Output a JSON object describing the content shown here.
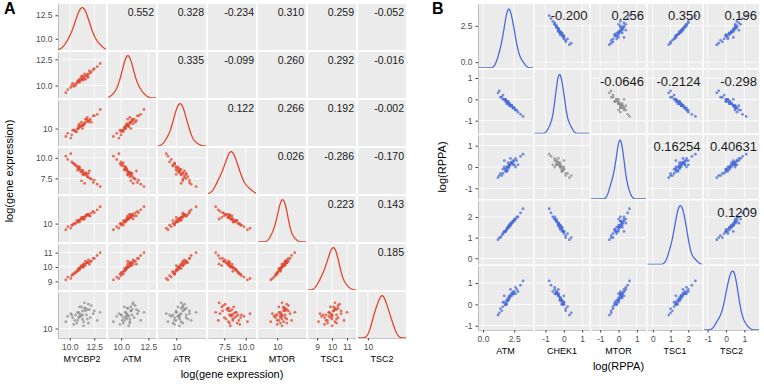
{
  "chart_data": [
    {
      "type": "pairs",
      "panel_label": "A",
      "x_label": "log(gene expression)",
      "y_label": "log(gene expression)",
      "color": "#e0462e",
      "variables": [
        {
          "name": "MYCBP2",
          "xlim": [
            8.8,
            13.7
          ],
          "xticks": [
            {
              "value": 10,
              "label": "10.0"
            },
            12.5
          ],
          "values": [
            11.2,
            10.5,
            11.8,
            12.1,
            10.9,
            11.4,
            9.8,
            11.0,
            12.4,
            10.7,
            11.6,
            11.3,
            10.2,
            11.9,
            12.8,
            10.8,
            11.1,
            11.5,
            10.4,
            11.7,
            12.2,
            10.9,
            11.3,
            9.6,
            11.0,
            11.8,
            12.0,
            10.6,
            11.4,
            11.2,
            13.1,
            10.3,
            11.6,
            11.0,
            12.5,
            10.8,
            11.5,
            11.9,
            10.1,
            11.3
          ]
        },
        {
          "name": "ATM",
          "xlim": [
            8.8,
            13.2
          ],
          "xticks": [
            {
              "value": 10,
              "label": "10.0"
            },
            12.5
          ],
          "values": [
            10.6,
            10.1,
            11.0,
            11.2,
            10.4,
            10.8,
            9.6,
            10.3,
            11.5,
            10.2,
            10.9,
            10.5,
            10.0,
            11.1,
            11.8,
            10.4,
            10.7,
            10.6,
            9.9,
            11.0,
            11.3,
            10.5,
            10.9,
            9.3,
            10.5,
            10.8,
            11.4,
            10.0,
            10.7,
            10.9,
            12.1,
            10.2,
            10.6,
            10.4,
            11.6,
            10.3,
            11.1,
            10.8,
            9.8,
            10.6
          ]
        },
        {
          "name": "ATR",
          "xlim": [
            8.9,
            11.8
          ],
          "xticks": [
            10
          ],
          "values": [
            10.2,
            9.9,
            10.5,
            10.6,
            10.0,
            10.3,
            9.7,
            10.1,
            10.8,
            9.8,
            10.4,
            10.2,
            9.6,
            10.5,
            10.9,
            10.0,
            10.1,
            10.3,
            9.9,
            10.6,
            10.4,
            10.2,
            10.0,
            9.5,
            10.3,
            10.7,
            10.5,
            9.8,
            10.2,
            10.4,
            11.2,
            9.9,
            10.6,
            10.1,
            10.8,
            10.0,
            10.3,
            10.4,
            9.4,
            10.2
          ]
        },
        {
          "name": "CHEK1",
          "xlim": [
            5.6,
            11.2
          ],
          "xticks": [
            7.5,
            {
              "value": 10,
              "label": "10.0"
            }
          ],
          "values": [
            8.4,
            9.2,
            7.8,
            7.5,
            8.9,
            8.0,
            9.8,
            8.6,
            7.0,
            9.0,
            8.2,
            8.5,
            9.5,
            7.6,
            6.8,
            8.8,
            8.3,
            7.9,
            9.3,
            8.1,
            7.4,
            8.7,
            8.0,
            10.2,
            8.6,
            7.7,
            8.4,
            9.1,
            8.2,
            7.2,
            6.5,
            9.4,
            8.0,
            8.9,
            7.3,
            8.5,
            6.9,
            8.1,
            10.5,
            8.3
          ]
        },
        {
          "name": "MTOR",
          "xlim": [
            8.8,
            11.8
          ],
          "xticks": [
            10
          ],
          "values": [
            10.3,
            10.0,
            10.6,
            10.5,
            10.2,
            10.4,
            9.8,
            10.1,
            10.8,
            10.2,
            10.5,
            10.3,
            9.9,
            10.6,
            10.9,
            10.1,
            10.3,
            10.4,
            10.0,
            10.5,
            10.7,
            10.2,
            10.4,
            9.6,
            10.2,
            10.6,
            10.5,
            10.0,
            10.3,
            10.4,
            11.1,
            9.9,
            10.5,
            10.2,
            10.7,
            10.1,
            10.3,
            10.6,
            9.7,
            10.3
          ]
        },
        {
          "name": "TSC1",
          "xlim": [
            8.4,
            11.6
          ],
          "xticks": [
            9,
            10,
            11
          ],
          "values": [
            10.0,
            9.6,
            10.3,
            10.4,
            9.8,
            10.2,
            9.3,
            9.9,
            10.6,
            9.7,
            10.1,
            10.0,
            9.4,
            10.5,
            10.8,
            9.8,
            10.0,
            10.2,
            9.5,
            10.3,
            10.4,
            9.9,
            10.1,
            9.1,
            9.9,
            10.3,
            10.2,
            9.6,
            10.0,
            10.1,
            11.0,
            9.5,
            10.4,
            9.8,
            10.6,
            9.7,
            10.2,
            10.3,
            9.2,
            10.0
          ]
        },
        {
          "name": "TSC2",
          "xlim": [
            9.3,
            12.7
          ],
          "xticks": [
            10
          ],
          "values": [
            11.0,
            10.6,
            11.4,
            10.8,
            11.2,
            10.5,
            10.9,
            11.6,
            11.1,
            10.4,
            11.3,
            10.7,
            11.0,
            11.8,
            10.6,
            11.2,
            10.9,
            11.5,
            10.3,
            11.0,
            11.7,
            10.8,
            11.3,
            10.5,
            11.1,
            10.7,
            11.4,
            11.0,
            10.2,
            11.6,
            11.2,
            10.8,
            11.5,
            10.9,
            11.3,
            10.6,
            11.9,
            10.4,
            11.1,
            11.0
          ]
        }
      ],
      "correlations": [
        {
          "x": "MYCBP2",
          "y": "ATM",
          "value": 0.552
        },
        {
          "x": "MYCBP2",
          "y": "ATR",
          "value": 0.328
        },
        {
          "x": "MYCBP2",
          "y": "CHEK1",
          "value": -0.234
        },
        {
          "x": "MYCBP2",
          "y": "MTOR",
          "value": 0.31,
          "label": "0.310"
        },
        {
          "x": "MYCBP2",
          "y": "TSC1",
          "value": 0.259
        },
        {
          "x": "MYCBP2",
          "y": "TSC2",
          "value": -0.052,
          "color": "#8f8f8f"
        },
        {
          "x": "ATM",
          "y": "ATR",
          "value": 0.335
        },
        {
          "x": "ATM",
          "y": "CHEK1",
          "value": -0.099
        },
        {
          "x": "ATM",
          "y": "MTOR",
          "value": 0.26,
          "label": "0.260"
        },
        {
          "x": "ATM",
          "y": "TSC1",
          "value": 0.292
        },
        {
          "x": "ATM",
          "y": "TSC2",
          "value": -0.016,
          "color": "#8f8f8f"
        },
        {
          "x": "ATR",
          "y": "CHEK1",
          "value": 0.122
        },
        {
          "x": "ATR",
          "y": "MTOR",
          "value": 0.266
        },
        {
          "x": "ATR",
          "y": "TSC1",
          "value": 0.192
        },
        {
          "x": "ATR",
          "y": "TSC2",
          "value": -0.002,
          "color": "#8f8f8f"
        },
        {
          "x": "CHEK1",
          "y": "MTOR",
          "value": 0.026
        },
        {
          "x": "CHEK1",
          "y": "TSC1",
          "value": -0.286
        },
        {
          "x": "CHEK1",
          "y": "TSC2",
          "value": -0.17,
          "label": "-0.170"
        },
        {
          "x": "MTOR",
          "y": "TSC1",
          "value": 0.223
        },
        {
          "x": "MTOR",
          "y": "TSC2",
          "value": 0.143
        },
        {
          "x": "TSC1",
          "y": "TSC2",
          "value": 0.185
        }
      ]
    },
    {
      "type": "splom",
      "panel_label": "B",
      "x_label": "log(RPPA)",
      "y_label": "log(RPPA)",
      "color": "#4a6bd8",
      "variables": [
        {
          "name": "ATM",
          "xlim": [
            -0.4,
            4.0
          ],
          "xticks": [
            {
              "value": 0,
              "label": "0.0"
            },
            2.5
          ],
          "values": [
            2.1,
            1.8,
            2.4,
            2.6,
            1.6,
            2.0,
            2.2,
            1.4,
            2.8,
            1.9,
            2.3,
            2.0,
            1.7,
            2.5,
            3.0,
            1.5,
            2.1,
            2.2,
            1.9,
            2.4,
            2.7,
            1.8,
            2.0,
            1.2,
            2.3,
            2.1,
            2.6,
            1.9,
            2.2,
            1.7,
            3.2,
            1.6,
            2.4,
            2.0,
            2.5,
            1.8,
            2.1,
            2.3,
            1.3,
            2.0
          ]
        },
        {
          "name": "CHEK1",
          "xlim": [
            -1.6,
            1.4
          ],
          "xticks": [
            -1,
            0,
            1
          ],
          "values": [
            -0.3,
            -0.1,
            -0.4,
            -0.5,
            0.0,
            -0.2,
            -0.3,
            0.1,
            -0.6,
            -0.2,
            -0.3,
            -0.1,
            0.0,
            -0.4,
            -0.7,
            0.1,
            -0.2,
            -0.3,
            -0.1,
            -0.4,
            -0.5,
            0.0,
            -0.2,
            0.3,
            -0.3,
            -0.2,
            -0.5,
            -0.1,
            -0.3,
            0.0,
            -0.8,
            0.2,
            -0.4,
            -0.1,
            -0.4,
            0.0,
            -0.2,
            -0.3,
            0.4,
            -0.2
          ]
        },
        {
          "name": "MTOR",
          "xlim": [
            -1.5,
            1.5
          ],
          "xticks": [
            -1,
            0,
            1
          ],
          "values": [
            0.1,
            -0.2,
            0.3,
            0.0,
            -0.1,
            0.2,
            0.4,
            -0.3,
            0.1,
            0.0,
            0.2,
            -0.1,
            0.3,
            0.1,
            0.5,
            -0.4,
            0.0,
            0.2,
            -0.2,
            0.1,
            0.3,
            -0.1,
            0.0,
            -0.5,
            0.2,
            0.1,
            0.4,
            -0.2,
            0.1,
            0.0,
            0.6,
            -0.3,
            0.2,
            0.0,
            0.3,
            -0.1,
            0.1,
            0.2,
            -0.4,
            0.0
          ]
        },
        {
          "name": "TSC1",
          "xlim": [
            -0.3,
            2.8
          ],
          "xticks": [
            0,
            1,
            2
          ],
          "values": [
            1.6,
            1.3,
            1.8,
            1.9,
            1.2,
            1.5,
            1.7,
            1.0,
            2.0,
            1.4,
            1.7,
            1.5,
            1.3,
            1.8,
            2.2,
            1.1,
            1.6,
            1.6,
            1.4,
            1.8,
            2.0,
            1.3,
            1.5,
            0.9,
            1.7,
            1.5,
            1.9,
            1.4,
            1.6,
            1.3,
            2.4,
            1.2,
            1.8,
            1.5,
            1.9,
            1.3,
            1.6,
            1.7,
            1.0,
            1.5
          ]
        },
        {
          "name": "TSC2",
          "xlim": [
            -1.2,
            1.8
          ],
          "xticks": [
            -1,
            0,
            1
          ],
          "values": [
            0.4,
            0.0,
            0.6,
            0.5,
            0.1,
            0.3,
            0.7,
            -0.2,
            0.6,
            0.2,
            0.5,
            0.2,
            0.4,
            0.5,
            0.9,
            -0.3,
            0.3,
            0.4,
            0.1,
            0.5,
            0.7,
            0.0,
            0.2,
            -0.5,
            0.4,
            0.3,
            0.8,
            0.0,
            0.4,
            0.1,
            1.1,
            -0.1,
            0.5,
            0.2,
            0.6,
            0.0,
            0.3,
            0.5,
            -0.4,
            0.2
          ]
        }
      ],
      "correlations": [
        {
          "x": "ATM",
          "y": "CHEK1",
          "value": -0.2,
          "label": "-0.200"
        },
        {
          "x": "ATM",
          "y": "MTOR",
          "value": 0.256
        },
        {
          "x": "ATM",
          "y": "TSC1",
          "value": 0.35,
          "label": "0.350"
        },
        {
          "x": "ATM",
          "y": "TSC2",
          "value": 0.196
        },
        {
          "x": "CHEK1",
          "y": "MTOR",
          "value": -0.0646,
          "color": "#8f8f8f"
        },
        {
          "x": "CHEK1",
          "y": "TSC1",
          "value": -0.2124
        },
        {
          "x": "CHEK1",
          "y": "TSC2",
          "value": -0.298
        },
        {
          "x": "MTOR",
          "y": "TSC1",
          "value": 0.16254
        },
        {
          "x": "MTOR",
          "y": "TSC2",
          "value": 0.40631
        },
        {
          "x": "TSC1",
          "y": "TSC2",
          "value": 0.1209
        }
      ]
    }
  ]
}
